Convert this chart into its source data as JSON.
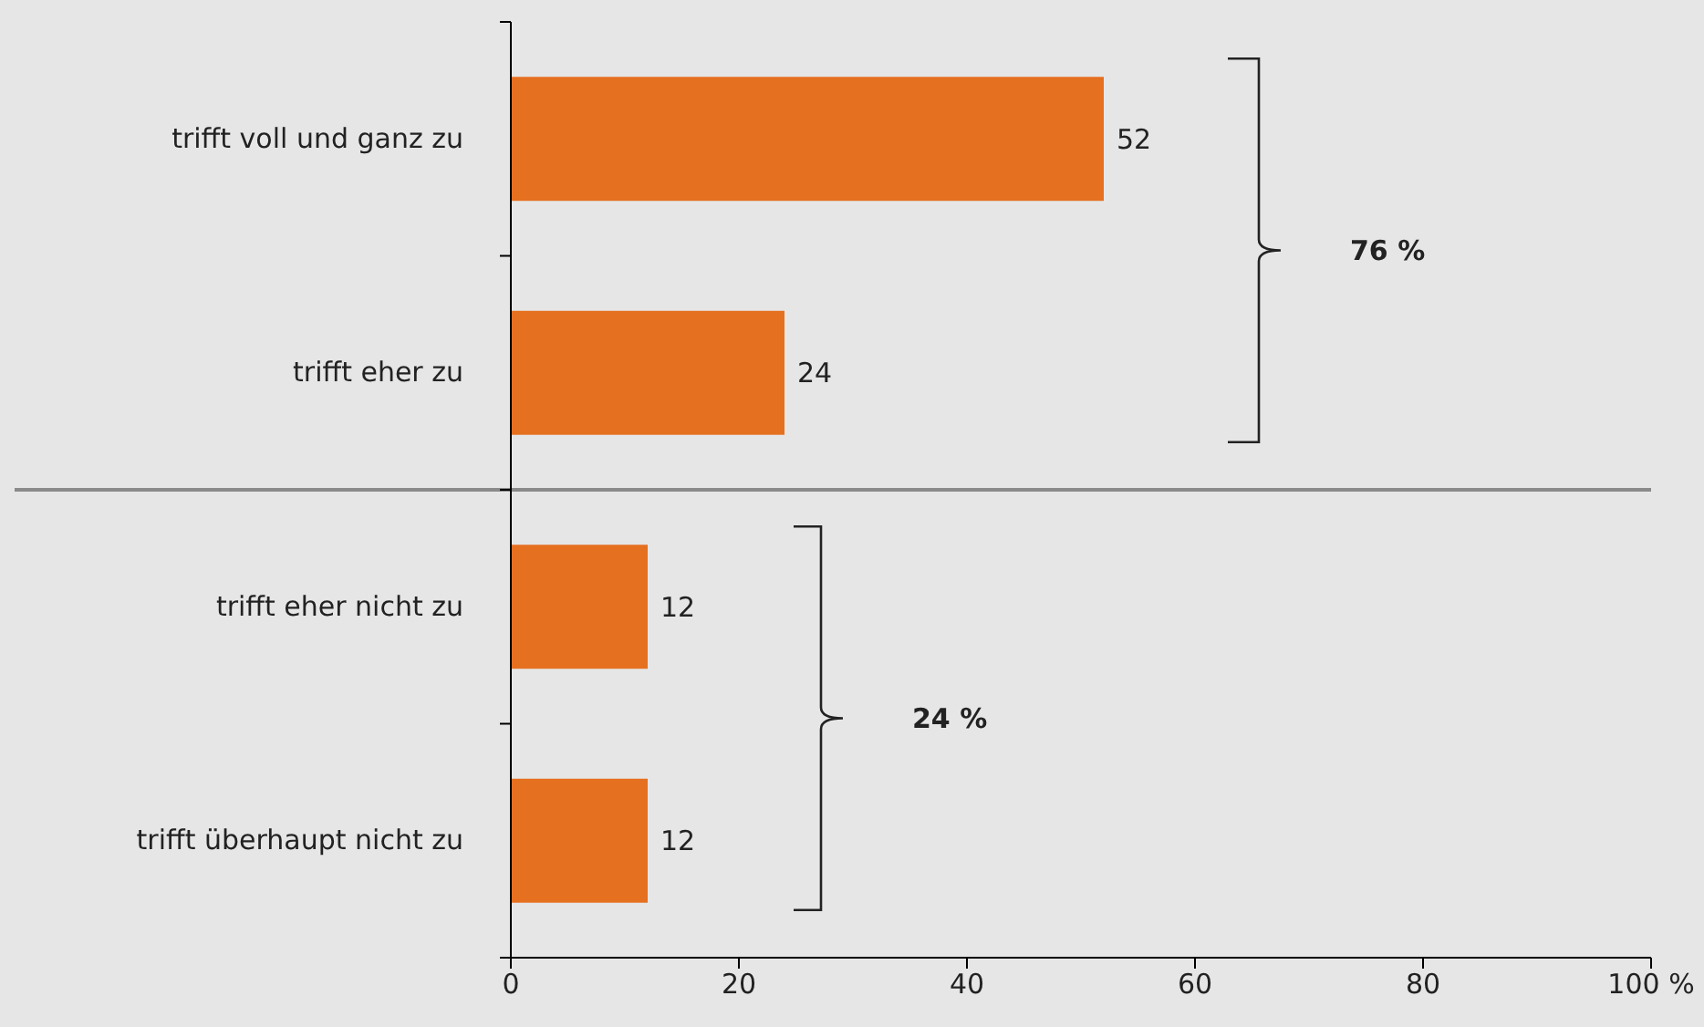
{
  "chart_data": {
    "type": "bar",
    "orientation": "horizontal",
    "categories": [
      "trifft voll und ganz zu",
      "trifft eher zu",
      "trifft eher nicht zu",
      "trifft überhaupt nicht zu"
    ],
    "values": [
      52,
      24,
      12,
      12
    ],
    "color": "#e57020",
    "xlim": [
      0,
      100
    ],
    "xticks": [
      0,
      20,
      40,
      60,
      80,
      {
        "value": 100,
        "label": "100 %"
      }
    ],
    "data_labels": true,
    "grid": false,
    "annotations": [
      "76 %",
      "24 %"
    ]
  }
}
